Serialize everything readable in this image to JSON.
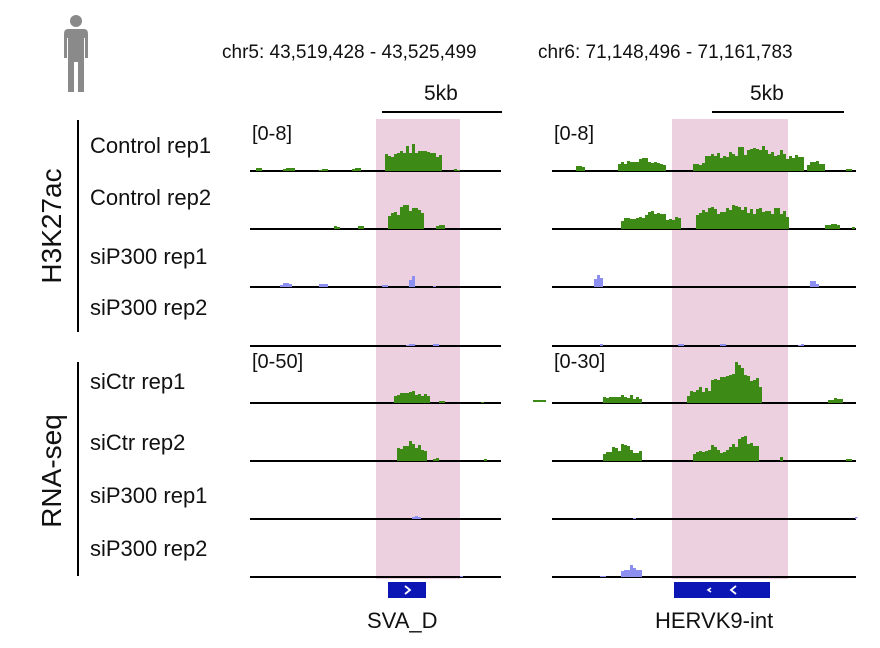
{
  "header": {
    "left_coord": "chr5: 43,519,428 - 43,525,499",
    "right_coord": "chr6: 71,148,496 - 71,161,783",
    "left_scale": "5kb",
    "right_scale": "5kb"
  },
  "groups": {
    "chip": "H3K27ac",
    "rna": "RNA-seq"
  },
  "tracks": {
    "chip": [
      {
        "label": "Control rep1",
        "left_range": "[0-8]",
        "right_range": "[0-8]"
      },
      {
        "label": "Control rep2"
      },
      {
        "label": "siP300 rep1"
      },
      {
        "label": "siP300 rep2"
      }
    ],
    "rna": [
      {
        "label": "siCtr rep1",
        "left_range": "[0-50]",
        "right_range": "[0-30]"
      },
      {
        "label": "siCtr rep2"
      },
      {
        "label": "siP300 rep1"
      },
      {
        "label": "siP300 rep2"
      }
    ]
  },
  "genes": {
    "left": "SVA_D",
    "right": "HERVK9-int"
  },
  "colors": {
    "control": "#3e8a16",
    "knockdown": "#8c8ef0",
    "highlight": "#ecd0e0",
    "gene": "#0b16b4"
  },
  "icons": {
    "human": "human-silhouette-icon"
  }
}
